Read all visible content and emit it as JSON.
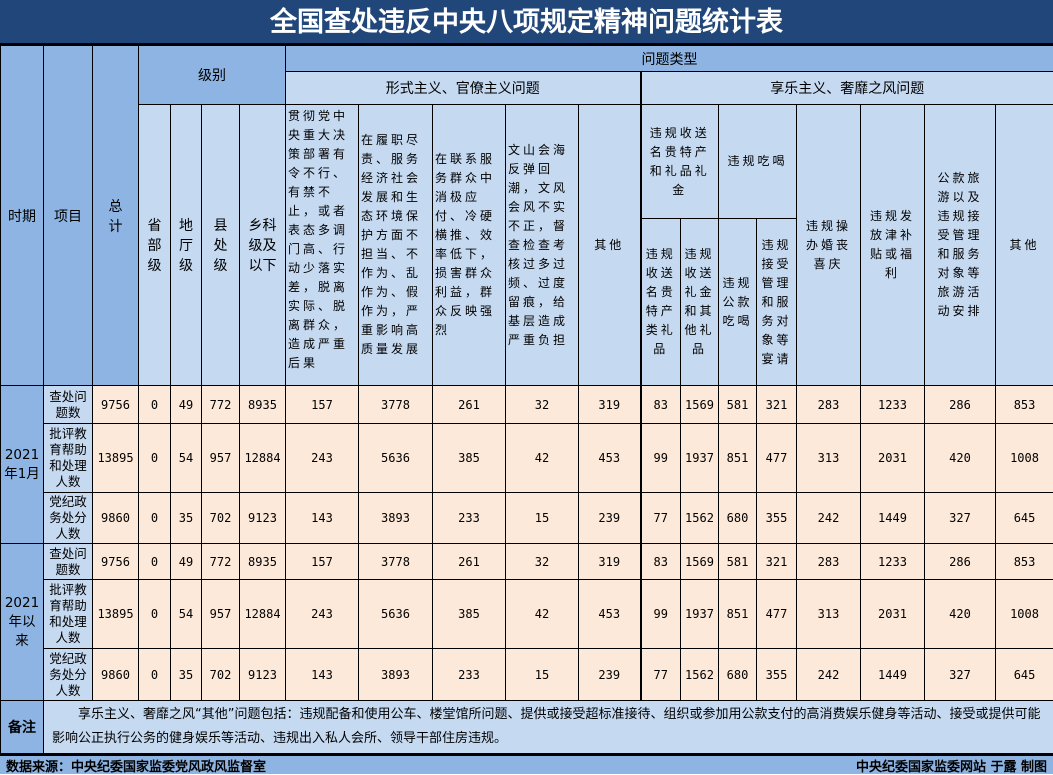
{
  "title": "全国查处违反中央八项规定精神问题统计表",
  "header": {
    "period": "时期",
    "item": "项目",
    "total": "总计",
    "level": "级别",
    "levels": [
      "省部级",
      "地厅级",
      "县处级",
      "乡科级及以下"
    ],
    "problem_type": "问题类型",
    "formalism": "形式主义、官僚主义问题",
    "formalism_cols": [
      "贯彻党中央重大决策部署有令不行、有禁不止，或者表态多调门高、行动少落实差，脱离实际、脱离群众，造成严重后果",
      "在履职尽责、服务经济社会发展和生态环境保护方面不担当、不作为、乱作为、假作为，严重影响高质量发展",
      "在联系服务群众中消极应付、冷硬横推、效率低下，损害群众利益，群众反映强烈",
      "文山会海反弹回潮，文风会风不实不正，督查检查考核过多过频、过度留痕，给基层造成严重负担",
      "其他"
    ],
    "hedonism": "享乐主义、奢靡之风问题",
    "gifts_group": "违规收送名贵特产和礼品礼金",
    "gifts_cols": [
      "违规收送名贵特产类礼品",
      "违规收送礼金和其他礼品"
    ],
    "dining_group": "违规吃喝",
    "dining_cols": [
      "违规公款吃喝",
      "违规接受管理和服务对象等宴请"
    ],
    "hedonism_cols": [
      "违规操办婚丧喜庆",
      "违规发放津补贴或福利",
      "公款旅游以及违规接受管理和服务对象等旅游活动安排",
      "其他"
    ]
  },
  "periods": [
    {
      "label": "2021年1月",
      "rows": [
        {
          "item": "查处问题数",
          "values": [
            "9756",
            "0",
            "49",
            "772",
            "8935",
            "157",
            "3778",
            "261",
            "32",
            "319",
            "83",
            "1569",
            "581",
            "321",
            "283",
            "1233",
            "286",
            "853"
          ]
        },
        {
          "item": "批评教育帮助和处理人数",
          "values": [
            "13895",
            "0",
            "54",
            "957",
            "12884",
            "243",
            "5636",
            "385",
            "42",
            "453",
            "99",
            "1937",
            "851",
            "477",
            "313",
            "2031",
            "420",
            "1008"
          ]
        },
        {
          "item": "党纪政务处分人数",
          "values": [
            "9860",
            "0",
            "35",
            "702",
            "9123",
            "143",
            "3893",
            "233",
            "15",
            "239",
            "77",
            "1562",
            "680",
            "355",
            "242",
            "1449",
            "327",
            "645"
          ]
        }
      ]
    },
    {
      "label": "2021年以来",
      "rows": [
        {
          "item": "查处问题数",
          "values": [
            "9756",
            "0",
            "49",
            "772",
            "8935",
            "157",
            "3778",
            "261",
            "32",
            "319",
            "83",
            "1569",
            "581",
            "321",
            "283",
            "1233",
            "286",
            "853"
          ]
        },
        {
          "item": "批评教育帮助和处理人数",
          "values": [
            "13895",
            "0",
            "54",
            "957",
            "12884",
            "243",
            "5636",
            "385",
            "42",
            "453",
            "99",
            "1937",
            "851",
            "477",
            "313",
            "2031",
            "420",
            "1008"
          ]
        },
        {
          "item": "党纪政务处分人数",
          "values": [
            "9860",
            "0",
            "35",
            "702",
            "9123",
            "143",
            "3893",
            "233",
            "15",
            "239",
            "77",
            "1562",
            "680",
            "355",
            "242",
            "1449",
            "327",
            "645"
          ]
        }
      ]
    }
  ],
  "note": {
    "label": "备注",
    "text": "享乐主义、奢靡之风“其他”问题包括：违规配备和使用公车、楼堂馆所问题、提供或接受超标准接待、组织或参加用公款支付的高消费娱乐健身等活动、接受或提供可能影响公正执行公务的健身娱乐等活动、违规出入私人会所、领导干部住房违规。"
  },
  "footer": {
    "source": "数据来源：中央纪委国家监委党风政风监督室",
    "credit": "中央纪委国家监委网站 于露 制图"
  },
  "colors": {
    "title_bg": "#21477a",
    "header_dark": "#8db4e2",
    "header_light": "#c5d9f1",
    "data_bg": "#fde9d9"
  }
}
